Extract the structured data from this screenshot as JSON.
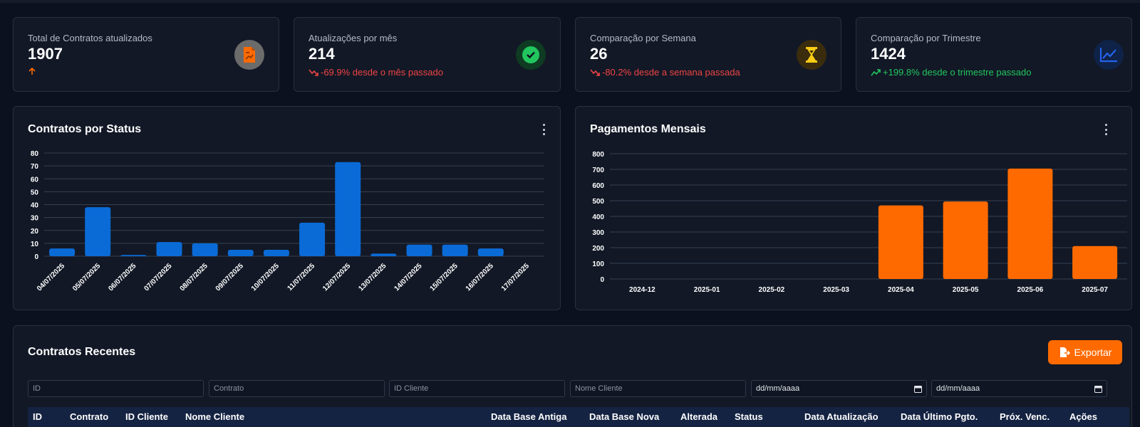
{
  "stats": [
    {
      "label": "Total de Contratos atualizados",
      "value": "1907",
      "trend": "",
      "trend_dir": "up-orange",
      "icon": "document-chart-icon",
      "icon_color": "#ff6a00"
    },
    {
      "label": "Atualizações por mês",
      "value": "214",
      "trend": "-69.9% desde o mês passado",
      "trend_dir": "down",
      "icon": "check-circle-icon",
      "icon_color": "#22c55e"
    },
    {
      "label": "Comparação por Semana",
      "value": "26",
      "trend": "-80.2% desde a semana passada",
      "trend_dir": "down",
      "icon": "hourglass-icon",
      "icon_color": "#facc15"
    },
    {
      "label": "Comparação por Trimestre",
      "value": "1424",
      "trend": "+199.8% desde o trimestre passado",
      "trend_dir": "up",
      "icon": "line-chart-icon",
      "icon_color": "#2563eb"
    }
  ],
  "chart_data": [
    {
      "type": "bar",
      "title": "Contratos por Status",
      "categories": [
        "04/07/2025",
        "05/07/2025",
        "06/07/2025",
        "07/07/2025",
        "08/07/2025",
        "09/07/2025",
        "10/07/2025",
        "11/07/2025",
        "12/07/2025",
        "13/07/2025",
        "14/07/2025",
        "15/07/2025",
        "16/07/2025",
        "17/07/2025"
      ],
      "values": [
        6,
        38,
        1,
        11,
        10,
        5,
        5,
        26,
        73,
        2,
        9,
        9,
        6,
        0
      ],
      "ylim": [
        0,
        80
      ],
      "yticks": [
        0,
        10,
        20,
        30,
        40,
        50,
        60,
        70,
        80
      ],
      "color": "#0a6bd6",
      "grid": true
    },
    {
      "type": "bar",
      "title": "Pagamentos Mensais",
      "categories": [
        "2024-12",
        "2025-01",
        "2025-02",
        "2025-03",
        "2025-04",
        "2025-05",
        "2025-06",
        "2025-07"
      ],
      "values": [
        0,
        0,
        0,
        0,
        470,
        495,
        705,
        210
      ],
      "ylim": [
        0,
        800
      ],
      "yticks": [
        0,
        100,
        200,
        300,
        400,
        500,
        600,
        700,
        800
      ],
      "color": "#ff6a00",
      "grid": true
    }
  ],
  "recent": {
    "title": "Contratos Recentes",
    "export_label": "Exportar",
    "filters": [
      {
        "placeholder": "ID"
      },
      {
        "placeholder": "Contrato"
      },
      {
        "placeholder": "ID Cliente"
      },
      {
        "placeholder": "Nome Cliente"
      },
      {
        "placeholder": "dd/mm/aaaa"
      },
      {
        "placeholder": "dd/mm/aaaa"
      }
    ],
    "columns": [
      "ID",
      "Contrato",
      "ID Cliente",
      "Nome Cliente",
      "Data Base Antiga",
      "Data Base Nova",
      "Alterada",
      "Status",
      "Data Atualização",
      "Data Último Pgto.",
      "Próx. Venc.",
      "Ações"
    ]
  }
}
